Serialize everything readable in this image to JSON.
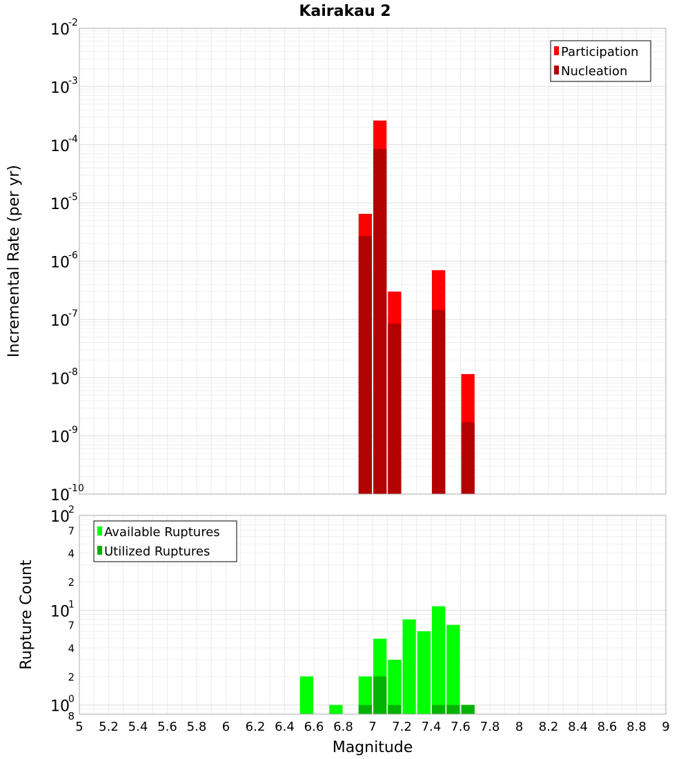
{
  "chart_data": {
    "type": "bar",
    "title": "Kairakau 2",
    "xlabel": "Magnitude",
    "xlim": [
      5,
      9
    ],
    "x_ticks": [
      "5",
      "5.2",
      "5.4",
      "5.6",
      "5.8",
      "6",
      "6.2",
      "6.4",
      "6.6",
      "6.8",
      "7",
      "7.2",
      "7.4",
      "7.6",
      "7.8",
      "8",
      "8.2",
      "8.4",
      "8.6",
      "8.8",
      "9"
    ],
    "bin_width": 0.1,
    "panels": [
      {
        "ylabel": "Incremental Rate (per yr)",
        "yscale": "log",
        "ylim": [
          1e-10,
          0.01
        ],
        "y_ticks": [
          {
            "base": "10",
            "exp": "-2"
          },
          {
            "base": "10",
            "exp": "-3"
          },
          {
            "base": "10",
            "exp": "-4"
          },
          {
            "base": "10",
            "exp": "-5"
          },
          {
            "base": "10",
            "exp": "-6"
          },
          {
            "base": "10",
            "exp": "-7"
          },
          {
            "base": "10",
            "exp": "-8"
          },
          {
            "base": "10",
            "exp": "-9"
          },
          {
            "base": "10",
            "exp": "-10"
          }
        ],
        "legend_position": "top-right",
        "series": [
          {
            "name": "Participation",
            "color": "#ff0000",
            "x": [
              6.95,
              7.05,
              7.15,
              7.45,
              7.65
            ],
            "values": [
              6.5e-06,
              0.00026,
              3e-07,
              7e-07,
              1.15e-08
            ]
          },
          {
            "name": "Nucleation",
            "color": "#b30000",
            "x": [
              6.95,
              7.05,
              7.15,
              7.45,
              7.65
            ],
            "values": [
              2.7e-06,
              8.5e-05,
              8.5e-08,
              1.45e-07,
              1.7e-09
            ]
          }
        ]
      },
      {
        "ylabel": "Rupture Count",
        "yscale": "log",
        "ylim": [
          0.8,
          100
        ],
        "y_ticks": [
          {
            "base": "10",
            "exp": "2"
          },
          {
            "base": "10",
            "exp": "1"
          },
          {
            "base": "10",
            "exp": "0"
          }
        ],
        "y_minor_ticks": [
          "7",
          "4",
          "2",
          "7",
          "4",
          "2",
          "8"
        ],
        "legend_position": "top-left",
        "series": [
          {
            "name": "Available Ruptures",
            "color": "#00ff00",
            "x": [
              6.55,
              6.75,
              6.95,
              7.05,
              7.15,
              7.25,
              7.35,
              7.45,
              7.55,
              7.65
            ],
            "values": [
              2,
              1,
              2,
              5,
              3,
              8,
              6,
              11,
              7,
              1
            ]
          },
          {
            "name": "Utilized Ruptures",
            "color": "#00b300",
            "x": [
              6.95,
              7.05,
              7.15,
              7.45,
              7.55,
              7.65
            ],
            "values": [
              1,
              2,
              1,
              1,
              1,
              1
            ]
          }
        ]
      }
    ]
  }
}
